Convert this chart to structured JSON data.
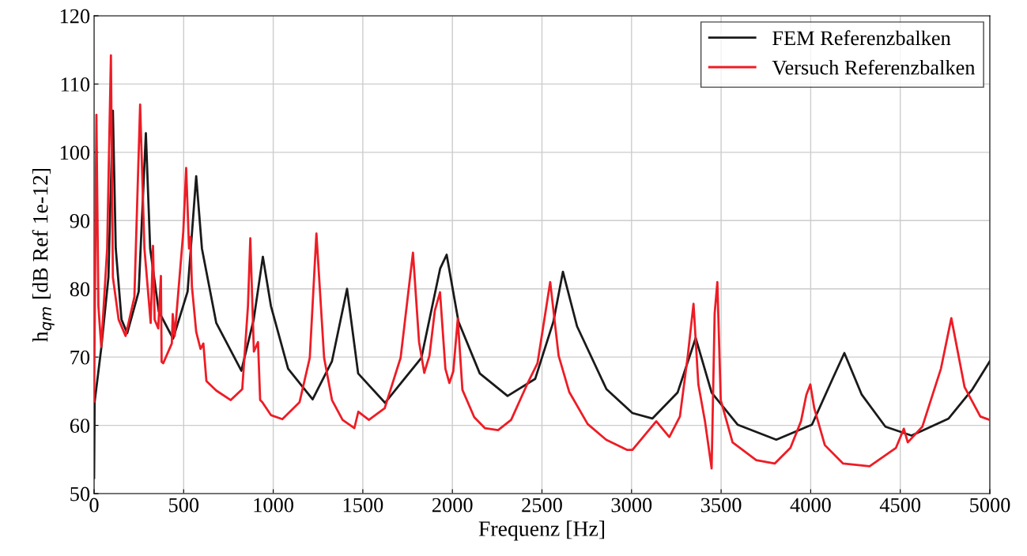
{
  "chart_data": {
    "type": "line",
    "xlabel": "Frequenz [Hz]",
    "ylabel": "h$_{qm}$ [dB Ref 1e-12]",
    "xlim": [
      0,
      5000
    ],
    "ylim": [
      50,
      120
    ],
    "xticks": [
      0,
      500,
      1000,
      1500,
      2000,
      2500,
      3000,
      3500,
      4000,
      4500,
      5000
    ],
    "yticks": [
      50,
      60,
      70,
      80,
      90,
      100,
      110,
      120
    ],
    "grid": true,
    "legend": "top right",
    "line_style": "solid",
    "marker": "none",
    "series": [
      {
        "name": "FEM Referenzbalken",
        "color": "#1a1a1a",
        "x": [
          0,
          3,
          40,
          80,
          105,
          121,
          153,
          185,
          249,
          289,
          313,
          361,
          441,
          522,
          570,
          602,
          682,
          822,
          891,
          942,
          987,
          1083,
          1220,
          1328,
          1412,
          1474,
          1624,
          1827,
          1932,
          1968,
          2034,
          2153,
          2308,
          2462,
          2564,
          2617,
          2696,
          2860,
          3005,
          3116,
          3257,
          3358,
          3447,
          3592,
          3808,
          4007,
          4122,
          4188,
          4285,
          4417,
          4563,
          4770,
          4903,
          5000
        ],
        "values": [
          52.3,
          63.4,
          71.3,
          81.7,
          106.1,
          85.9,
          75.5,
          73.5,
          79.6,
          102.8,
          85.9,
          76.7,
          72.7,
          79.6,
          96.5,
          85.9,
          75,
          68,
          75.5,
          84.7,
          77.5,
          68.3,
          63.8,
          69.4,
          80,
          67.6,
          63.3,
          69.9,
          83,
          85,
          75.2,
          67.6,
          64.3,
          66.8,
          75.2,
          82.5,
          74.5,
          65.3,
          61.8,
          61,
          64.8,
          72.8,
          64.8,
          60.1,
          57.9,
          60.1,
          66.8,
          70.6,
          64.5,
          59.8,
          58.5,
          61,
          65.3,
          69.4
        ]
      },
      {
        "name": "Versuch Referenzbalken",
        "color": "#ee1c25",
        "x": [
          0,
          13,
          24,
          40,
          73,
          94,
          105,
          137,
          176,
          225,
          257,
          281,
          316,
          329,
          338,
          358,
          373,
          377,
          386,
          434,
          439,
          450,
          498,
          514,
          530,
          538,
          546,
          570,
          594,
          610,
          627,
          682,
          763,
          827,
          859,
          872,
          892,
          915,
          927,
          939,
          987,
          1051,
          1147,
          1204,
          1241,
          1284,
          1328,
          1387,
          1453,
          1475,
          1534,
          1622,
          1711,
          1780,
          1814,
          1843,
          1872,
          1902,
          1931,
          1961,
          1983,
          2005,
          2030,
          2056,
          2122,
          2181,
          2255,
          2328,
          2417,
          2475,
          2546,
          2593,
          2652,
          2755,
          2858,
          2976,
          3005,
          3138,
          3211,
          3270,
          3314,
          3346,
          3373,
          3410,
          3447,
          3464,
          3479,
          3498,
          3564,
          3696,
          3799,
          3887,
          3946,
          3976,
          3998,
          4020,
          4079,
          4181,
          4329,
          4476,
          4520,
          4542,
          4623,
          4727,
          4785,
          4859,
          4947,
          5000
        ],
        "values": [
          63.5,
          105.5,
          77.5,
          71.5,
          85.9,
          114.2,
          81.7,
          75.5,
          73.1,
          78.8,
          107,
          85.9,
          75,
          86.3,
          75.5,
          74.2,
          81.9,
          69.3,
          69.1,
          72,
          76.3,
          73.1,
          88.4,
          97.7,
          85.9,
          87.6,
          80.4,
          73.7,
          71.2,
          72,
          66.5,
          65.1,
          63.7,
          65.3,
          77.5,
          87.4,
          70.8,
          72.2,
          63.7,
          63.4,
          61.5,
          60.9,
          63.4,
          69.9,
          88.1,
          69.9,
          63.7,
          60.8,
          59.6,
          62,
          60.8,
          62.5,
          69.9,
          85.3,
          72.2,
          67.7,
          70.2,
          76.8,
          79.5,
          68.3,
          66.2,
          67.9,
          75.6,
          65.2,
          61.2,
          59.6,
          59.3,
          60.8,
          66,
          69.1,
          81,
          70.2,
          64.9,
          60.2,
          57.9,
          56.4,
          56.4,
          60.6,
          58.3,
          61.3,
          70.2,
          77.8,
          66,
          60.6,
          53.7,
          76.4,
          81,
          63.7,
          57.5,
          54.9,
          54.4,
          56.7,
          60.6,
          64.5,
          66,
          62.5,
          57.1,
          54.4,
          54,
          56.7,
          59.5,
          57.5,
          59.8,
          68.3,
          75.7,
          65.6,
          61.3,
          60.8
        ]
      }
    ]
  }
}
